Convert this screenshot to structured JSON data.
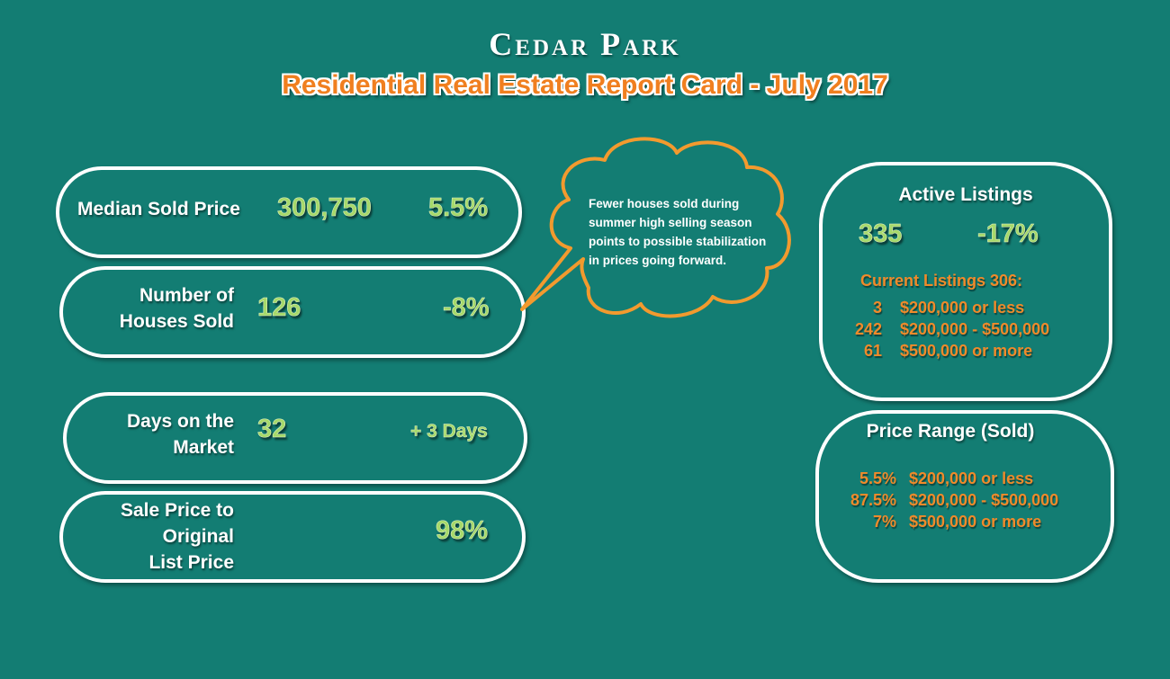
{
  "header": {
    "title": "Cedar Park",
    "subtitle": "Residential Real Estate Report Card -  July 2017"
  },
  "metrics": {
    "median": {
      "label": "Median Sold Price",
      "value": "300,750",
      "change": "5.5%"
    },
    "houses_sold": {
      "label_line1": "Number of",
      "label_line2": "Houses Sold",
      "value": "126",
      "change": "-8%"
    },
    "days_on_market": {
      "label_line1": "Days on the",
      "label_line2": "Market",
      "value": "32",
      "change": "+ 3 Days"
    },
    "sale_to_list": {
      "label_line1": "Sale Price to",
      "label_line2": "Original",
      "label_line3": "List Price",
      "value": "98%"
    }
  },
  "callout": {
    "line1": "Fewer houses sold during",
    "line2": "summer high selling season",
    "line3": "points to possible stabilization",
    "line4": "in prices going forward."
  },
  "active_listings": {
    "title": "Active Listings",
    "value": "335",
    "change": "-17%",
    "current_label": "Current Listings  306:",
    "rows": [
      {
        "count": "3",
        "range": "$200,000 or less"
      },
      {
        "count": "242",
        "range": "$200,000 - $500,000"
      },
      {
        "count": "61",
        "range": "$500,000 or more"
      }
    ]
  },
  "price_range": {
    "title": "Price Range (Sold)",
    "rows": [
      {
        "pct": "5.5%",
        "range": "$200,000 or less"
      },
      {
        "pct": "87.5%",
        "range": "$200,000 - $500,000"
      },
      {
        "pct": "7%",
        "range": "$500,000 or more"
      }
    ]
  },
  "colors": {
    "background": "#137d73",
    "accent_orange": "#f07f1f",
    "value_green": "#a6d96a"
  }
}
